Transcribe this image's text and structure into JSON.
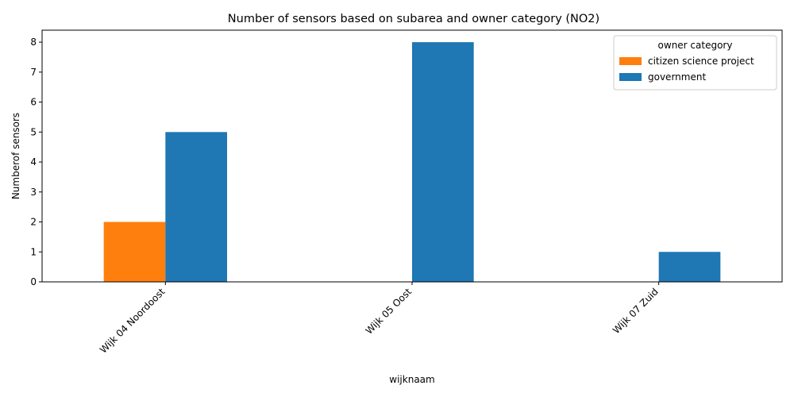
{
  "chart_data": {
    "type": "bar",
    "title": "Number of sensors based on subarea and owner category (NO2)",
    "xlabel": "wijknaam",
    "ylabel": "Numberof sensors",
    "categories": [
      "Wijk 04 Noordoost",
      "Wijk 05 Oost",
      "Wijk 07 Zuid"
    ],
    "series": [
      {
        "name": "citizen science project",
        "color": "#ff7f0e",
        "values": [
          2,
          0,
          0
        ]
      },
      {
        "name": "government",
        "color": "#1f77b4",
        "values": [
          5,
          8,
          1
        ]
      }
    ],
    "ylim": [
      0,
      8.4
    ],
    "yticks": [
      0,
      1,
      2,
      3,
      4,
      5,
      6,
      7,
      8
    ],
    "legend": {
      "title": "owner category",
      "placement": "top-right"
    },
    "grid": false
  }
}
